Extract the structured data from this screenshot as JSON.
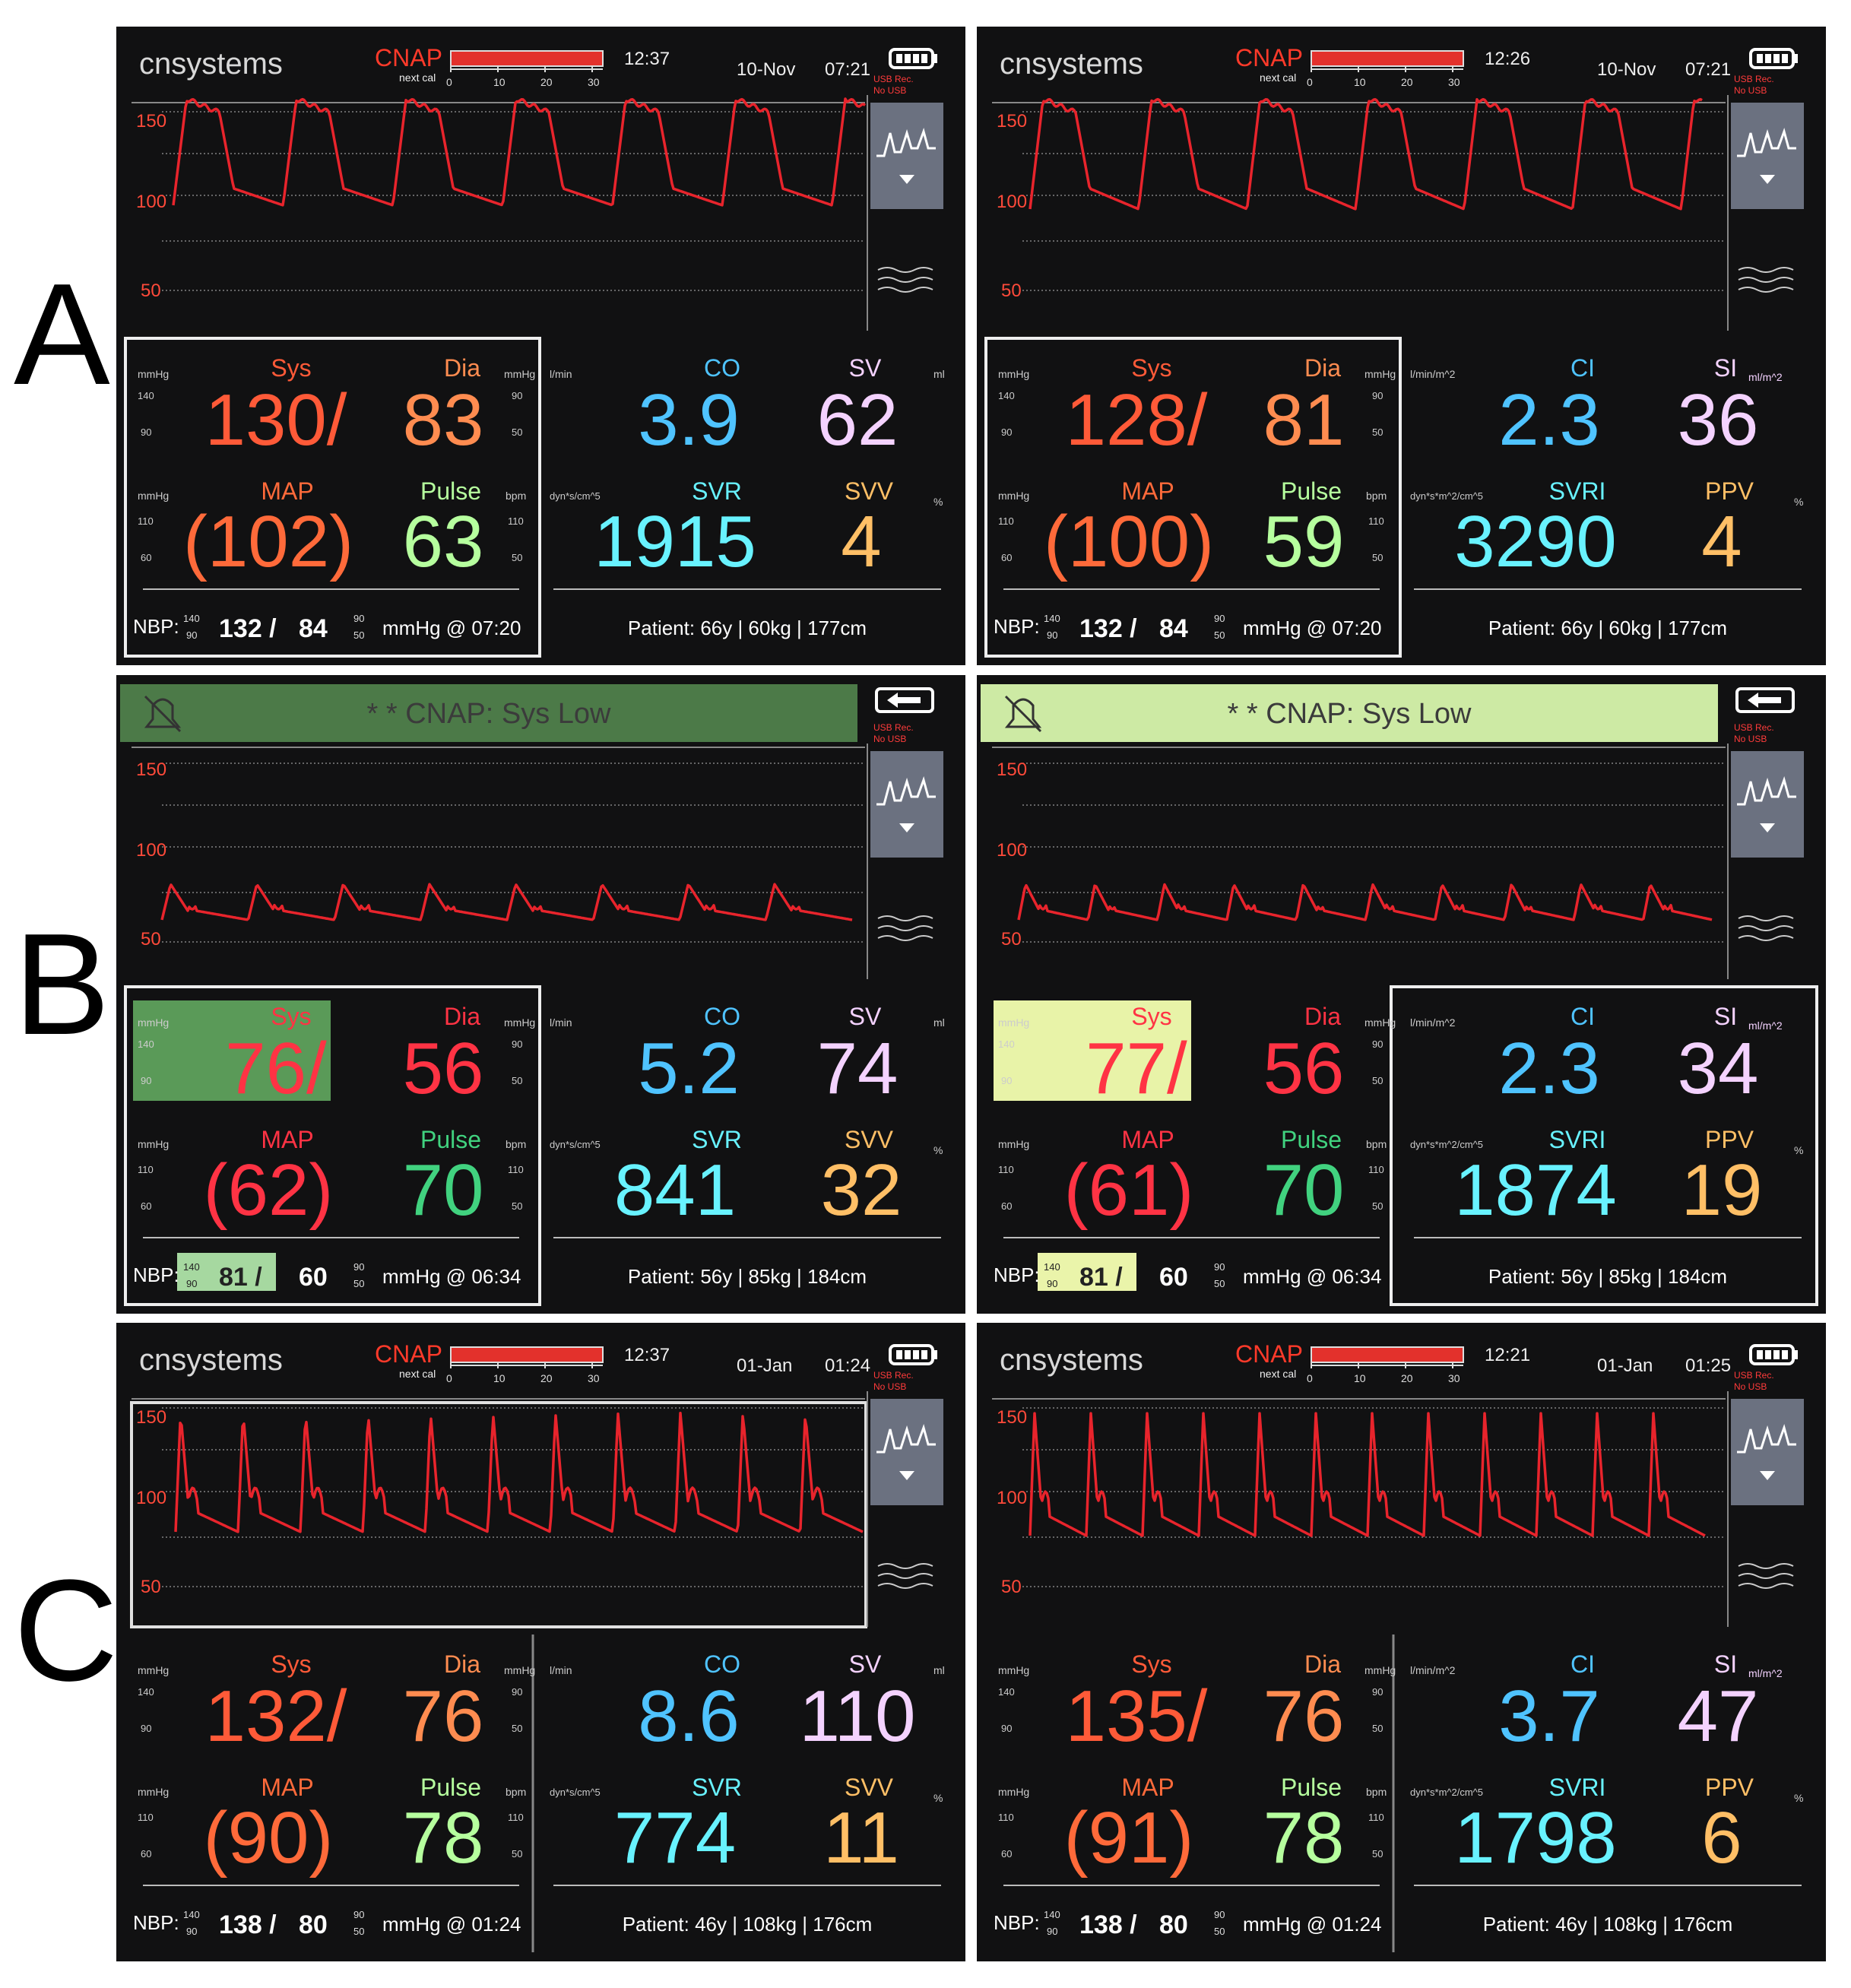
{
  "row_labels": [
    "A",
    "B",
    "C"
  ],
  "colors": {
    "sys": "#ff5a38",
    "dia": "#ff8c50",
    "map": "#ff6a3a",
    "pulse": "#b6ff9e",
    "co": "#4fc3ff",
    "sv": "#f4d2ff",
    "svr": "#68f2ff",
    "svv": "#ffbf66",
    "alarm_bar": "#cde8a6",
    "alarm_red": "#ff3344",
    "alarm_green": "#41d27f",
    "wave": "#e8242c"
  },
  "panels": [
    {
      "id": "A1",
      "header": "normal",
      "brand": "cnsystems",
      "cnap": "CNAP",
      "next_cal": "next cal",
      "cal_ticks": [
        "0",
        "10",
        "20",
        "30"
      ],
      "cal_time": "12:37",
      "date": "10-Nov",
      "time": "07:21",
      "usb": "USB Rec.",
      "usb2": "No USB",
      "y150": "150",
      "y100": "100",
      "y50": "50",
      "wave_frame": false,
      "wave": "A1",
      "mmhg": "mmHg",
      "sys_l": "Sys",
      "dia_l": "Dia",
      "map_l": "MAP",
      "pulse_l": "Pulse",
      "bpm": "bpm",
      "sys_hi": "140",
      "sys_lo": "90",
      "dia_hi": "90",
      "dia_lo": "50",
      "map_hi": "110",
      "map_lo": "60",
      "pulse_hi": "110",
      "pulse_lo": "50",
      "sys": "130/",
      "dia": "83",
      "map": "(102)",
      "pulse": "63",
      "sys_alarm": false,
      "nbp_alarm": false,
      "u1": "l/min",
      "p1": "CO",
      "v1": "3.9",
      "p2": "SV",
      "v2": "62",
      "u2": "ml",
      "u3": "dyn*s/cm^5",
      "p3": "SVR",
      "v3": "1915",
      "p4": "SVV",
      "v4": "4",
      "u4": "%",
      "nbp_l": "NBP:",
      "nbp_hi": "140",
      "nbp_lo": "90",
      "nbp_sys": "132 /",
      "nbp_dia": "84",
      "nbp_dhi": "90",
      "nbp_dlo": "50",
      "nbp_time": "mmHg @ 07:20",
      "patient": "Patient:  66y  |  60kg  |  177cm",
      "left_box": true,
      "right_box": false
    },
    {
      "id": "A2",
      "header": "normal",
      "brand": "cnsystems",
      "cnap": "CNAP",
      "next_cal": "next cal",
      "cal_ticks": [
        "0",
        "10",
        "20",
        "30"
      ],
      "cal_time": "12:26",
      "date": "10-Nov",
      "time": "07:21",
      "usb": "USB Rec.",
      "usb2": "No USB",
      "y150": "150",
      "y100": "100",
      "y50": "50",
      "wave_frame": false,
      "wave": "A2",
      "mmhg": "mmHg",
      "sys_l": "Sys",
      "dia_l": "Dia",
      "map_l": "MAP",
      "pulse_l": "Pulse",
      "bpm": "bpm",
      "sys_hi": "140",
      "sys_lo": "90",
      "dia_hi": "90",
      "dia_lo": "50",
      "map_hi": "110",
      "map_lo": "60",
      "pulse_hi": "110",
      "pulse_lo": "50",
      "sys": "128/",
      "dia": "81",
      "map": "(100)",
      "pulse": "59",
      "sys_alarm": false,
      "nbp_alarm": false,
      "u1": "l/min/m^2",
      "p1": "CI",
      "v1": "2.3",
      "p2": "SI",
      "p2sub": "ml/m^2",
      "v2": "36",
      "u2": "",
      "u3": "dyn*s*m^2/cm^5",
      "p3": "SVRI",
      "v3": "3290",
      "p4": "PPV",
      "v4": "4",
      "u4": "%",
      "nbp_l": "NBP:",
      "nbp_hi": "140",
      "nbp_lo": "90",
      "nbp_sys": "132 /",
      "nbp_dia": "84",
      "nbp_dhi": "90",
      "nbp_dlo": "50",
      "nbp_time": "mmHg @ 07:20",
      "patient": "Patient:  66y  |  60kg  |  177cm",
      "left_box": true,
      "right_box": false
    },
    {
      "id": "B1",
      "header": "alarm",
      "alarm_text": "* * CNAP: Sys Low",
      "alarm_dim": true,
      "usb": "USB Rec.",
      "usb2": "No USB",
      "y150": "150",
      "y100": "100",
      "y50": "50",
      "wave_frame": false,
      "wave": "B1",
      "mmhg": "mmHg",
      "sys_l": "Sys",
      "dia_l": "Dia",
      "map_l": "MAP",
      "pulse_l": "Pulse",
      "bpm": "bpm",
      "sys_hi": "140",
      "sys_lo": "90",
      "dia_hi": "90",
      "dia_lo": "50",
      "map_hi": "110",
      "map_lo": "60",
      "pulse_hi": "110",
      "pulse_lo": "50",
      "sys": "76/",
      "dia": "56",
      "map": "(62)",
      "pulse": "70",
      "sys_alarm": true,
      "nbp_alarm": true,
      "u1": "l/min",
      "p1": "CO",
      "v1": "5.2",
      "p2": "SV",
      "v2": "74",
      "u2": "ml",
      "u3": "dyn*s/cm^5",
      "p3": "SVR",
      "v3": "841",
      "p4": "SVV",
      "v4": "32",
      "u4": "%",
      "nbp_l": "NBP:",
      "nbp_hi": "140",
      "nbp_lo": "90",
      "nbp_sys": "81 /",
      "nbp_dia": "60",
      "nbp_dhi": "90",
      "nbp_dlo": "50",
      "nbp_time": "mmHg @ 06:34",
      "patient": "Patient:  56y  |  85kg  |  184cm",
      "left_box": true,
      "right_box": false
    },
    {
      "id": "B2",
      "header": "alarm",
      "alarm_text": "* * CNAP: Sys Low",
      "alarm_dim": false,
      "usb": "USB Rec.",
      "usb2": "No USB",
      "y150": "150",
      "y100": "100",
      "y50": "50",
      "wave_frame": false,
      "wave": "B2",
      "mmhg": "mmHg",
      "sys_l": "Sys",
      "dia_l": "Dia",
      "map_l": "MAP",
      "pulse_l": "Pulse",
      "bpm": "bpm",
      "sys_hi": "140",
      "sys_lo": "90",
      "dia_hi": "90",
      "dia_lo": "50",
      "map_hi": "110",
      "map_lo": "60",
      "pulse_hi": "110",
      "pulse_lo": "50",
      "sys": "77/",
      "dia": "56",
      "map": "(61)",
      "pulse": "70",
      "sys_alarm": true,
      "nbp_alarm": true,
      "u1": "l/min/m^2",
      "p1": "CI",
      "v1": "2.3",
      "p2": "SI",
      "p2sub": "ml/m^2",
      "v2": "34",
      "u2": "",
      "u3": "dyn*s*m^2/cm^5",
      "p3": "SVRI",
      "v3": "1874",
      "p4": "PPV",
      "v4": "19",
      "u4": "%",
      "nbp_l": "NBP:",
      "nbp_hi": "140",
      "nbp_lo": "90",
      "nbp_sys": "81 /",
      "nbp_dia": "60",
      "nbp_dhi": "90",
      "nbp_dlo": "50",
      "nbp_time": "mmHg @ 06:34",
      "patient": "Patient:  56y  |  85kg  |  184cm",
      "left_box": false,
      "right_box": true
    },
    {
      "id": "C1",
      "header": "normal",
      "brand": "cnsystems",
      "cnap": "CNAP",
      "next_cal": "next cal",
      "cal_ticks": [
        "0",
        "10",
        "20",
        "30"
      ],
      "cal_time": "12:37",
      "date": "01-Jan",
      "time": "01:24",
      "usb": "USB Rec.",
      "usb2": "No USB",
      "y150": "150",
      "y100": "100",
      "y50": "50",
      "wave_frame": true,
      "wave": "C1",
      "mmhg": "mmHg",
      "sys_l": "Sys",
      "dia_l": "Dia",
      "map_l": "MAP",
      "pulse_l": "Pulse",
      "bpm": "bpm",
      "sys_hi": "140",
      "sys_lo": "90",
      "dia_hi": "90",
      "dia_lo": "50",
      "map_hi": "110",
      "map_lo": "60",
      "pulse_hi": "110",
      "pulse_lo": "50",
      "sys": "132/",
      "dia": "76",
      "map": "(90)",
      "pulse": "78",
      "sys_alarm": false,
      "nbp_alarm": false,
      "u1": "l/min",
      "p1": "CO",
      "v1": "8.6",
      "p2": "SV",
      "v2": "110",
      "u2": "ml",
      "u3": "dyn*s/cm^5",
      "p3": "SVR",
      "v3": "774",
      "p4": "SVV",
      "v4": "11",
      "u4": "%",
      "nbp_l": "NBP:",
      "nbp_hi": "140",
      "nbp_lo": "90",
      "nbp_sys": "138 /",
      "nbp_dia": "80",
      "nbp_dhi": "90",
      "nbp_dlo": "50",
      "nbp_time": "mmHg @ 01:24",
      "patient": "Patient:  46y  |  108kg  |  176cm",
      "left_box": false,
      "right_box": false
    },
    {
      "id": "C2",
      "header": "normal",
      "brand": "cnsystems",
      "cnap": "CNAP",
      "next_cal": "next cal",
      "cal_ticks": [
        "0",
        "10",
        "20",
        "30"
      ],
      "cal_time": "12:21",
      "date": "01-Jan",
      "time": "01:25",
      "usb": "USB Rec.",
      "usb2": "No USB",
      "y150": "150",
      "y100": "100",
      "y50": "50",
      "wave_frame": false,
      "wave": "C2",
      "mmhg": "mmHg",
      "sys_l": "Sys",
      "dia_l": "Dia",
      "map_l": "MAP",
      "pulse_l": "Pulse",
      "bpm": "bpm",
      "sys_hi": "140",
      "sys_lo": "90",
      "dia_hi": "90",
      "dia_lo": "50",
      "map_hi": "110",
      "map_lo": "60",
      "pulse_hi": "110",
      "pulse_lo": "50",
      "sys": "135/",
      "dia": "76",
      "map": "(91)",
      "pulse": "78",
      "sys_alarm": false,
      "nbp_alarm": false,
      "u1": "l/min/m^2",
      "p1": "CI",
      "v1": "3.7",
      "p2": "SI",
      "p2sub": "ml/m^2",
      "v2": "47",
      "u2": "",
      "u3": "dyn*s*m^2/cm^5",
      "p3": "SVRI",
      "v3": "1798",
      "p4": "PPV",
      "v4": "6",
      "u4": "%",
      "nbp_l": "NBP:",
      "nbp_hi": "140",
      "nbp_lo": "90",
      "nbp_sys": "138 /",
      "nbp_dia": "80",
      "nbp_dhi": "90",
      "nbp_dlo": "50",
      "nbp_time": "mmHg @ 01:24",
      "patient": "Patient:  46y  |  108kg  |  176cm",
      "left_box": false,
      "right_box": false
    }
  ]
}
